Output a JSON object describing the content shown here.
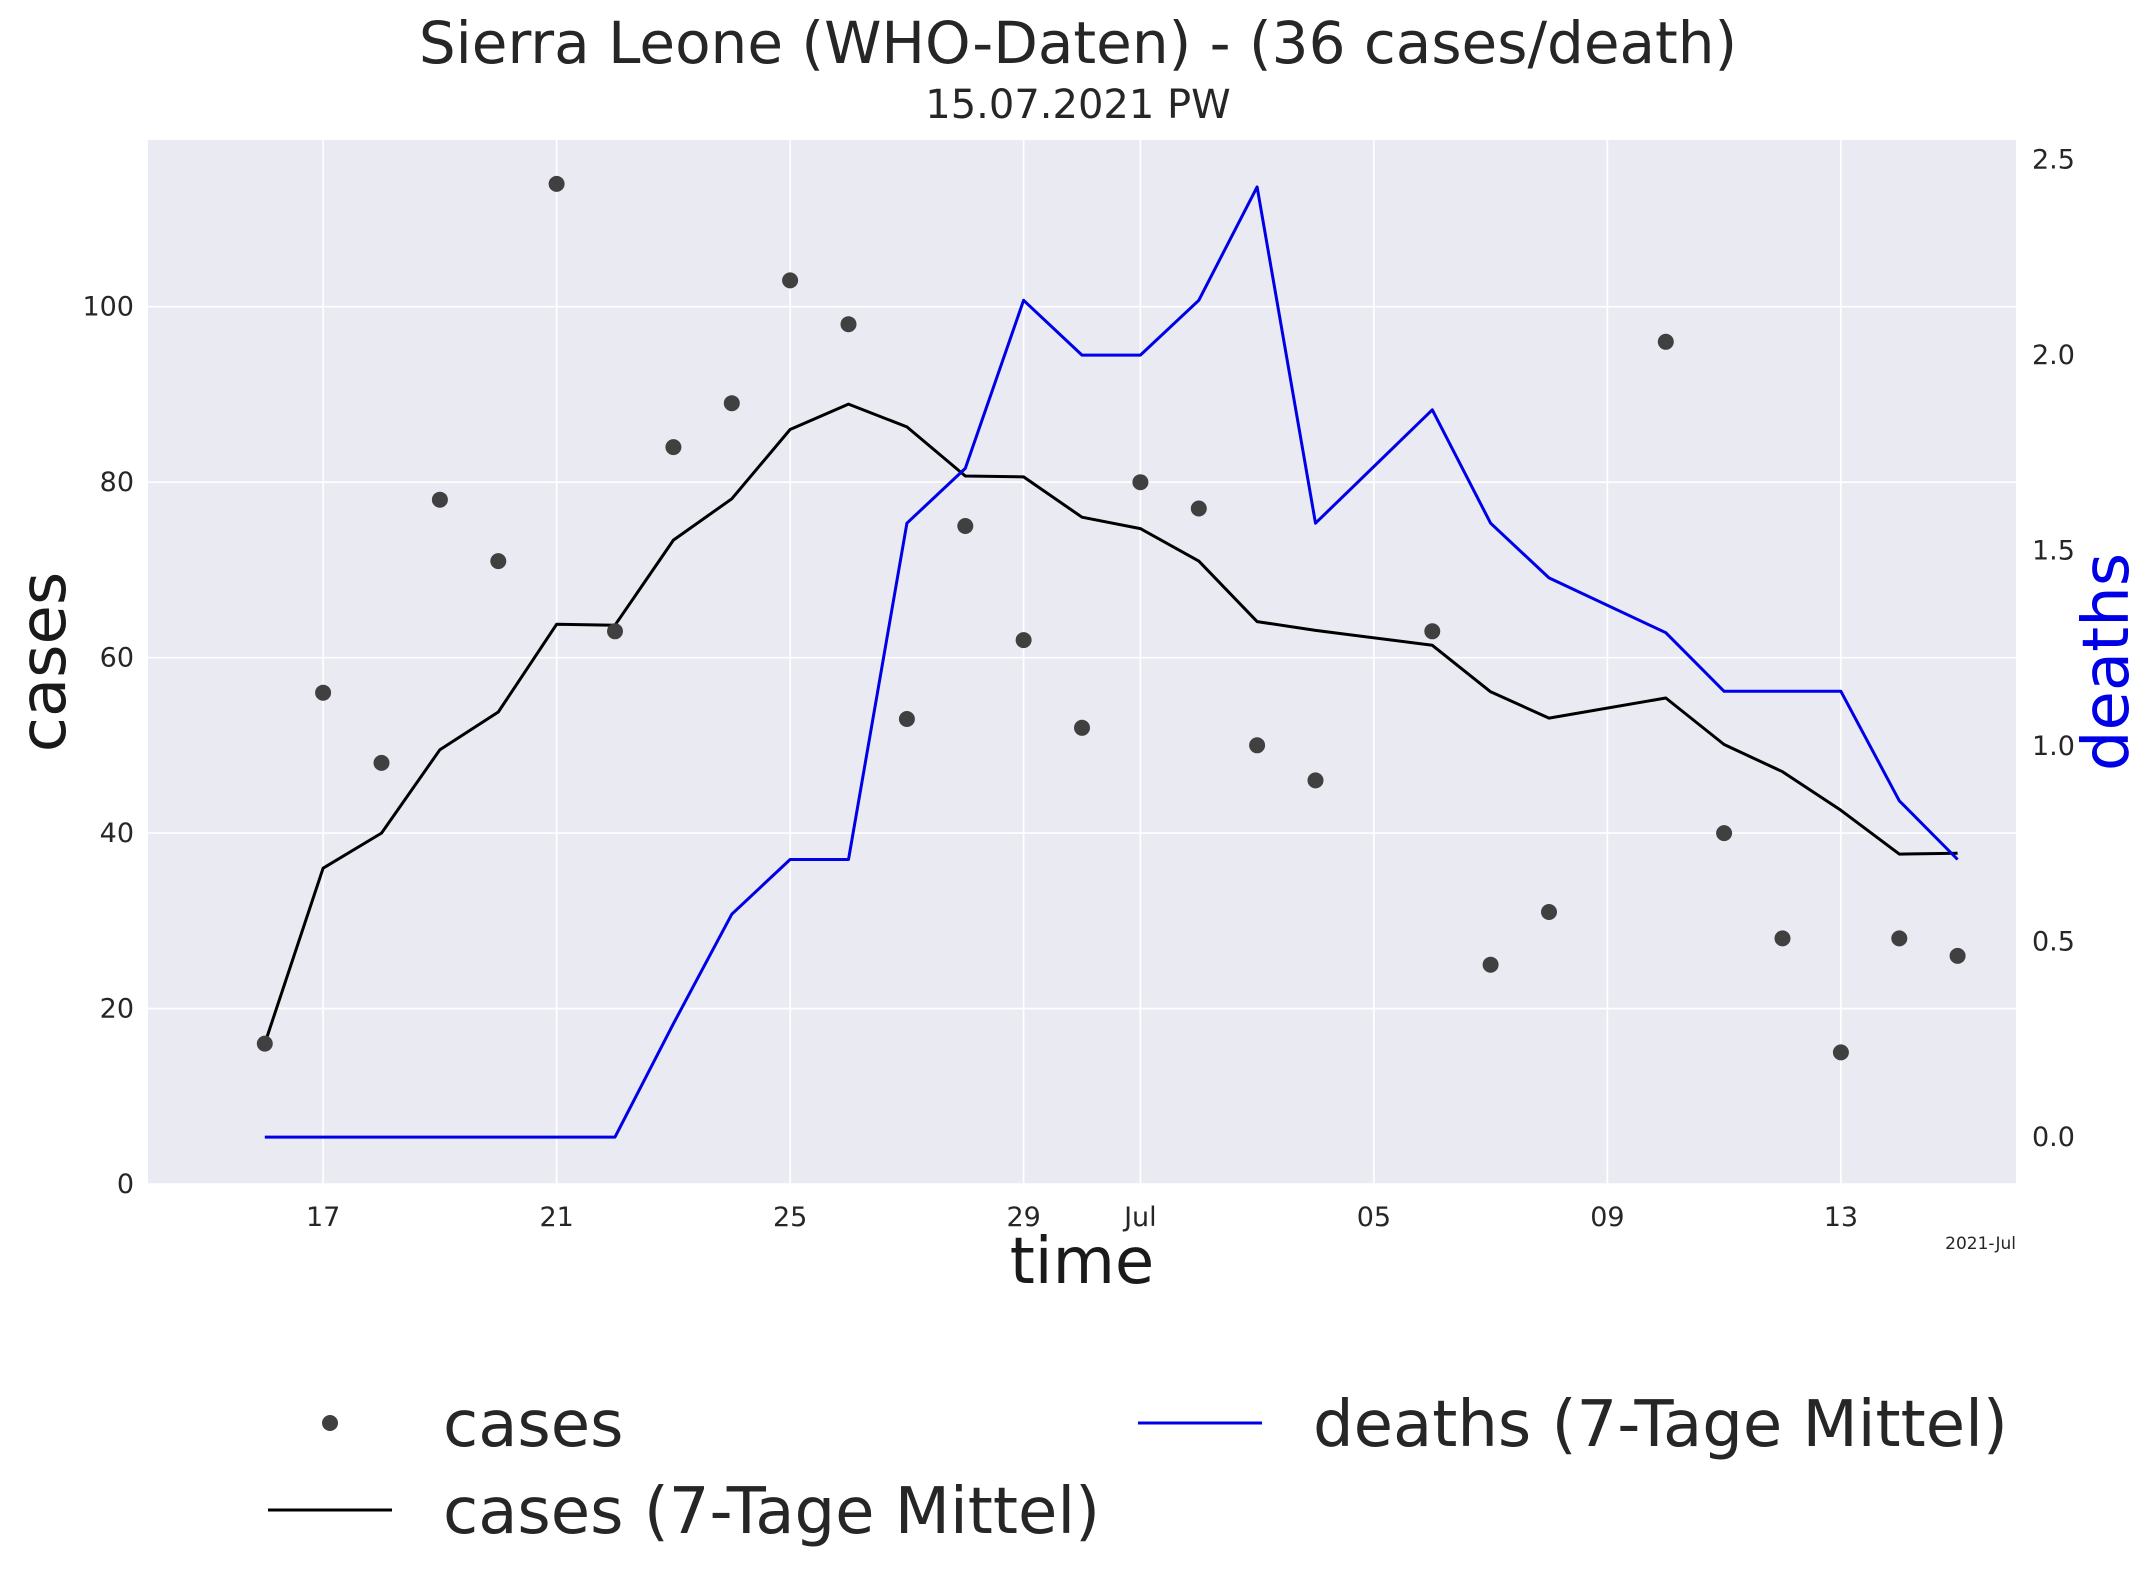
{
  "chart_data": {
    "type": "line",
    "title": "Sierra Leone (WHO-Daten) - (36 cases/death)",
    "subtitle": "15.07.2021 PW",
    "xlabel": "time",
    "ylabel_left": "cases",
    "ylabel_right": "deaths",
    "x_offset_label": "2021-Jul",
    "x_ticks": [
      {
        "date": "2021-06-17",
        "label": "17"
      },
      {
        "date": "2021-06-21",
        "label": "21"
      },
      {
        "date": "2021-06-25",
        "label": "25"
      },
      {
        "date": "2021-06-29",
        "label": "29"
      },
      {
        "date": "2021-07-01",
        "label": "Jul"
      },
      {
        "date": "2021-07-05",
        "label": "05"
      },
      {
        "date": "2021-07-09",
        "label": "09"
      },
      {
        "date": "2021-07-13",
        "label": "13"
      }
    ],
    "y_left_ticks": [
      0,
      20,
      40,
      60,
      80,
      100
    ],
    "y_right_ticks": [
      "0.0",
      "0.5",
      "1.0",
      "1.5",
      "2.0",
      "2.5"
    ],
    "x_range": [
      "2021-06-14",
      "2021-07-16"
    ],
    "ylim_left": [
      0,
      119
    ],
    "ylim_right": [
      -0.12,
      2.55
    ],
    "grid": true,
    "legend_position": "below",
    "dates": [
      "2021-06-16",
      "2021-06-17",
      "2021-06-18",
      "2021-06-19",
      "2021-06-20",
      "2021-06-21",
      "2021-06-22",
      "2021-06-23",
      "2021-06-24",
      "2021-06-25",
      "2021-06-26",
      "2021-06-27",
      "2021-06-28",
      "2021-06-29",
      "2021-06-30",
      "2021-07-01",
      "2021-07-02",
      "2021-07-03",
      "2021-07-04",
      "2021-07-06",
      "2021-07-07",
      "2021-07-08",
      "2021-07-10",
      "2021-07-11",
      "2021-07-12",
      "2021-07-13",
      "2021-07-14",
      "2021-07-15"
    ],
    "series": [
      {
        "name": "cases",
        "kind": "scatter",
        "axis": "left",
        "color": "#404040",
        "values": [
          16,
          56,
          48,
          78,
          71,
          114,
          63,
          84,
          89,
          103,
          98,
          53,
          75,
          62,
          52,
          80,
          77,
          50,
          46,
          63,
          25,
          31,
          96,
          40,
          28,
          15,
          28,
          26
        ]
      },
      {
        "name": "cases (7-Tage Mittel)",
        "kind": "line",
        "axis": "left",
        "color": "#000000",
        "values": [
          16,
          36,
          40,
          49.5,
          53.8,
          63.8,
          63.7,
          73.4,
          78.1,
          86,
          88.9,
          86.3,
          80.7,
          80.6,
          76,
          74.7,
          71,
          64.1,
          63.1,
          61.4,
          56.1,
          53.1,
          55.4,
          50.1,
          47,
          42.6,
          37.6,
          37.7
        ]
      },
      {
        "name": "deaths (7-Tage Mittel)",
        "kind": "line",
        "axis": "right",
        "color": "#0000e6",
        "values": [
          0,
          0,
          0,
          0,
          0,
          0,
          0,
          0.29,
          0.57,
          0.71,
          0.71,
          1.57,
          1.71,
          2.14,
          2.0,
          2.0,
          2.14,
          2.43,
          1.57,
          1.86,
          1.57,
          1.43,
          1.29,
          1.14,
          1.14,
          1.14,
          0.86,
          0.71
        ]
      }
    ]
  }
}
